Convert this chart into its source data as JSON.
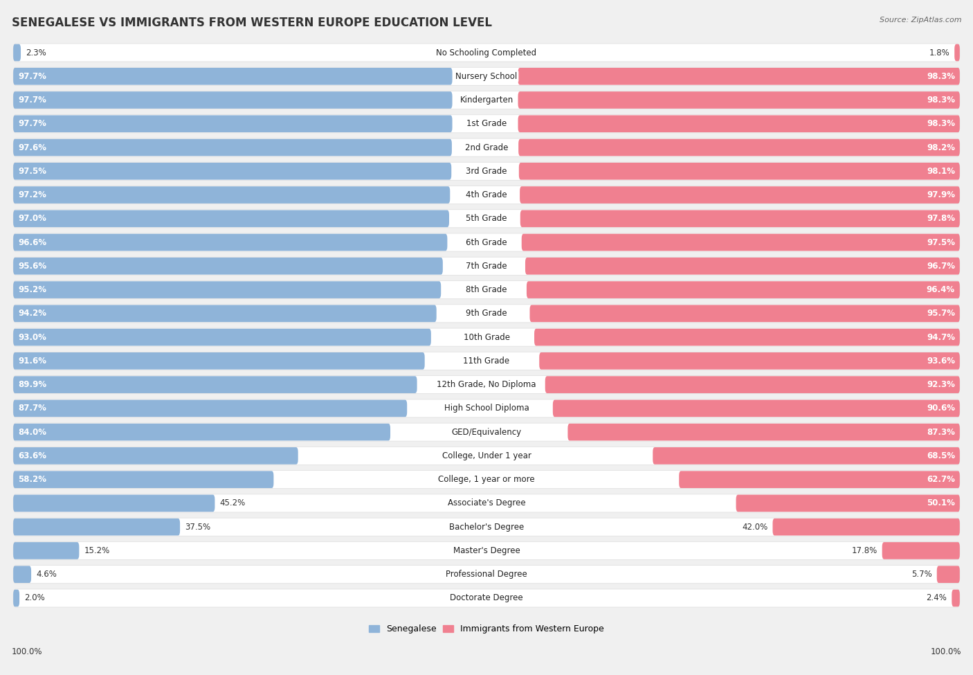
{
  "title": "SENEGALESE VS IMMIGRANTS FROM WESTERN EUROPE EDUCATION LEVEL",
  "source": "Source: ZipAtlas.com",
  "categories": [
    "No Schooling Completed",
    "Nursery School",
    "Kindergarten",
    "1st Grade",
    "2nd Grade",
    "3rd Grade",
    "4th Grade",
    "5th Grade",
    "6th Grade",
    "7th Grade",
    "8th Grade",
    "9th Grade",
    "10th Grade",
    "11th Grade",
    "12th Grade, No Diploma",
    "High School Diploma",
    "GED/Equivalency",
    "College, Under 1 year",
    "College, 1 year or more",
    "Associate's Degree",
    "Bachelor's Degree",
    "Master's Degree",
    "Professional Degree",
    "Doctorate Degree"
  ],
  "senegalese": [
    2.3,
    97.7,
    97.7,
    97.7,
    97.6,
    97.5,
    97.2,
    97.0,
    96.6,
    95.6,
    95.2,
    94.2,
    93.0,
    91.6,
    89.9,
    87.7,
    84.0,
    63.6,
    58.2,
    45.2,
    37.5,
    15.2,
    4.6,
    2.0
  ],
  "immigrants": [
    1.8,
    98.3,
    98.3,
    98.3,
    98.2,
    98.1,
    97.9,
    97.8,
    97.5,
    96.7,
    96.4,
    95.7,
    94.7,
    93.6,
    92.3,
    90.6,
    87.3,
    68.5,
    62.7,
    50.1,
    42.0,
    17.8,
    5.7,
    2.4
  ],
  "blue_color": "#8fb4d9",
  "pink_color": "#f08090",
  "bg_color": "#f0f0f0",
  "bar_bg_color": "#ffffff",
  "title_fontsize": 12,
  "label_fontsize": 8.5,
  "value_fontsize": 8.5,
  "legend_fontsize": 9
}
